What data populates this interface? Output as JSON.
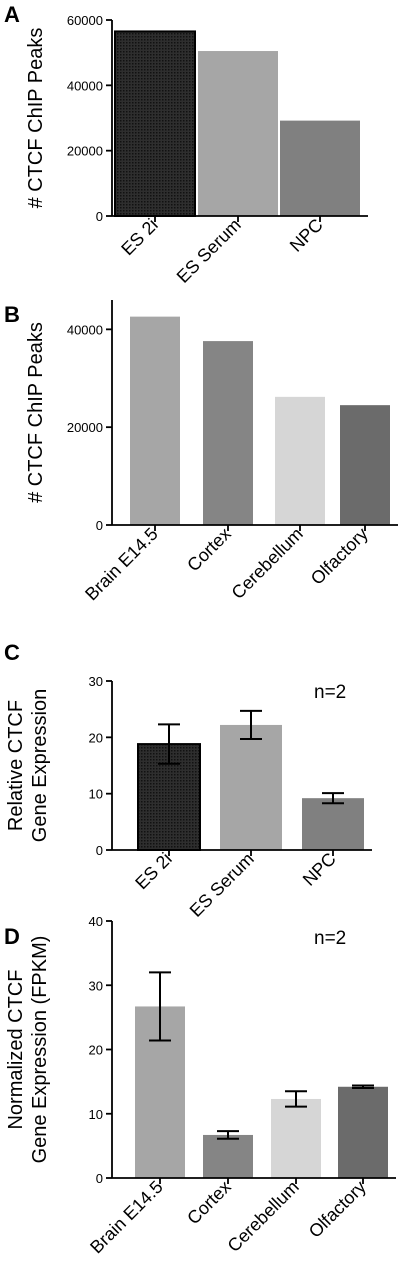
{
  "chart_data": [
    {
      "type": "bar",
      "panel": "A",
      "ylabel": [
        "# CTCF ChIP Peaks"
      ],
      "categories": [
        "ES 2i",
        "ES Serum",
        "NPC"
      ],
      "values": [
        56500,
        50500,
        29200
      ],
      "colors": [
        "#262626",
        "#a6a6a6",
        "#808080"
      ],
      "hatched": [
        true,
        false,
        false
      ],
      "ylim": [
        0,
        60000
      ],
      "yticks": [
        0,
        20000,
        40000,
        60000
      ],
      "ytick_labels": [
        "0",
        "20000",
        "40000",
        "60000"
      ],
      "annotation": ""
    },
    {
      "type": "bar",
      "panel": "B",
      "ylabel": [
        "# CTCF ChIP Peaks"
      ],
      "categories": [
        "Brain E14.5",
        "Cortex",
        "Cerebellum",
        "Olfactory"
      ],
      "values": [
        42600,
        37600,
        26200,
        24500
      ],
      "colors": [
        "#a6a6a6",
        "#858585",
        "#d6d6d6",
        "#6b6b6b"
      ],
      "hatched": [
        false,
        false,
        false,
        false
      ],
      "ylim": [
        0,
        46000
      ],
      "yticks": [
        0,
        20000,
        40000
      ],
      "ytick_labels": [
        "0",
        "20000",
        "40000"
      ],
      "annotation": ""
    },
    {
      "type": "bar",
      "panel": "C",
      "ylabel": [
        "Relative CTCF",
        "Gene Expression"
      ],
      "categories": [
        "ES 2i",
        "ES Serum",
        "NPC"
      ],
      "values": [
        18.8,
        22.2,
        9.2
      ],
      "errors": [
        3.5,
        2.5,
        0.9
      ],
      "colors": [
        "#262626",
        "#a6a6a6",
        "#808080"
      ],
      "hatched": [
        true,
        false,
        false
      ],
      "ylim": [
        0,
        30
      ],
      "yticks": [
        0,
        10,
        20,
        30
      ],
      "ytick_labels": [
        "0",
        "10",
        "20",
        "30"
      ],
      "annotation": "n=2"
    },
    {
      "type": "bar",
      "panel": "D",
      "ylabel": [
        "Normalized CTCF",
        "Gene Expression (FPKM)"
      ],
      "categories": [
        "Brain E14.5",
        "Cortex",
        "Cerebellum",
        "Olfactory"
      ],
      "values": [
        26.7,
        6.7,
        12.3,
        14.2
      ],
      "errors": [
        5.3,
        0.6,
        1.2,
        0.2
      ],
      "colors": [
        "#a6a6a6",
        "#858585",
        "#d6d6d6",
        "#6b6b6b"
      ],
      "hatched": [
        false,
        false,
        false,
        false
      ],
      "ylim": [
        0,
        40
      ],
      "yticks": [
        0,
        10,
        20,
        30,
        40
      ],
      "ytick_labels": [
        "0",
        "10",
        "20",
        "30",
        "40"
      ],
      "annotation": "n=2"
    }
  ]
}
